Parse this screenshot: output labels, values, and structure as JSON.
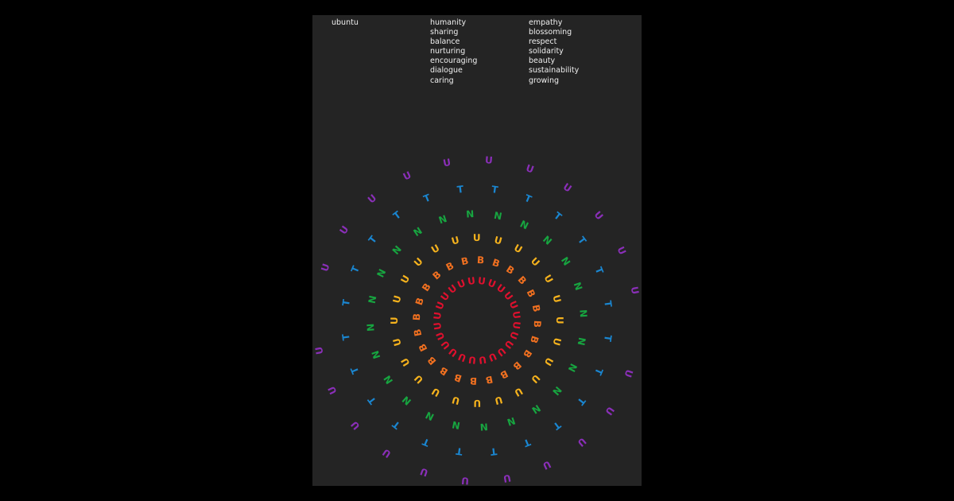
{
  "poster": {
    "title": "ubuntu",
    "column_1": [
      "humanity",
      "sharing",
      "balance",
      "nurturing",
      "encouraging",
      "dialogue",
      "caring"
    ],
    "column_2": [
      "empathy",
      "blossoming",
      "respect",
      "solidarity",
      "beauty",
      "sustainability",
      "growing"
    ]
  },
  "artwork": {
    "arm_sequence": [
      "U",
      "B",
      "U",
      "N",
      "T",
      "U"
    ],
    "colors": [
      "#e0102e",
      "#f07020",
      "#f5b21d",
      "#17a540",
      "#1a86d0",
      "#8a2fb8"
    ],
    "background": "#242424",
    "page_background": "#000000"
  }
}
